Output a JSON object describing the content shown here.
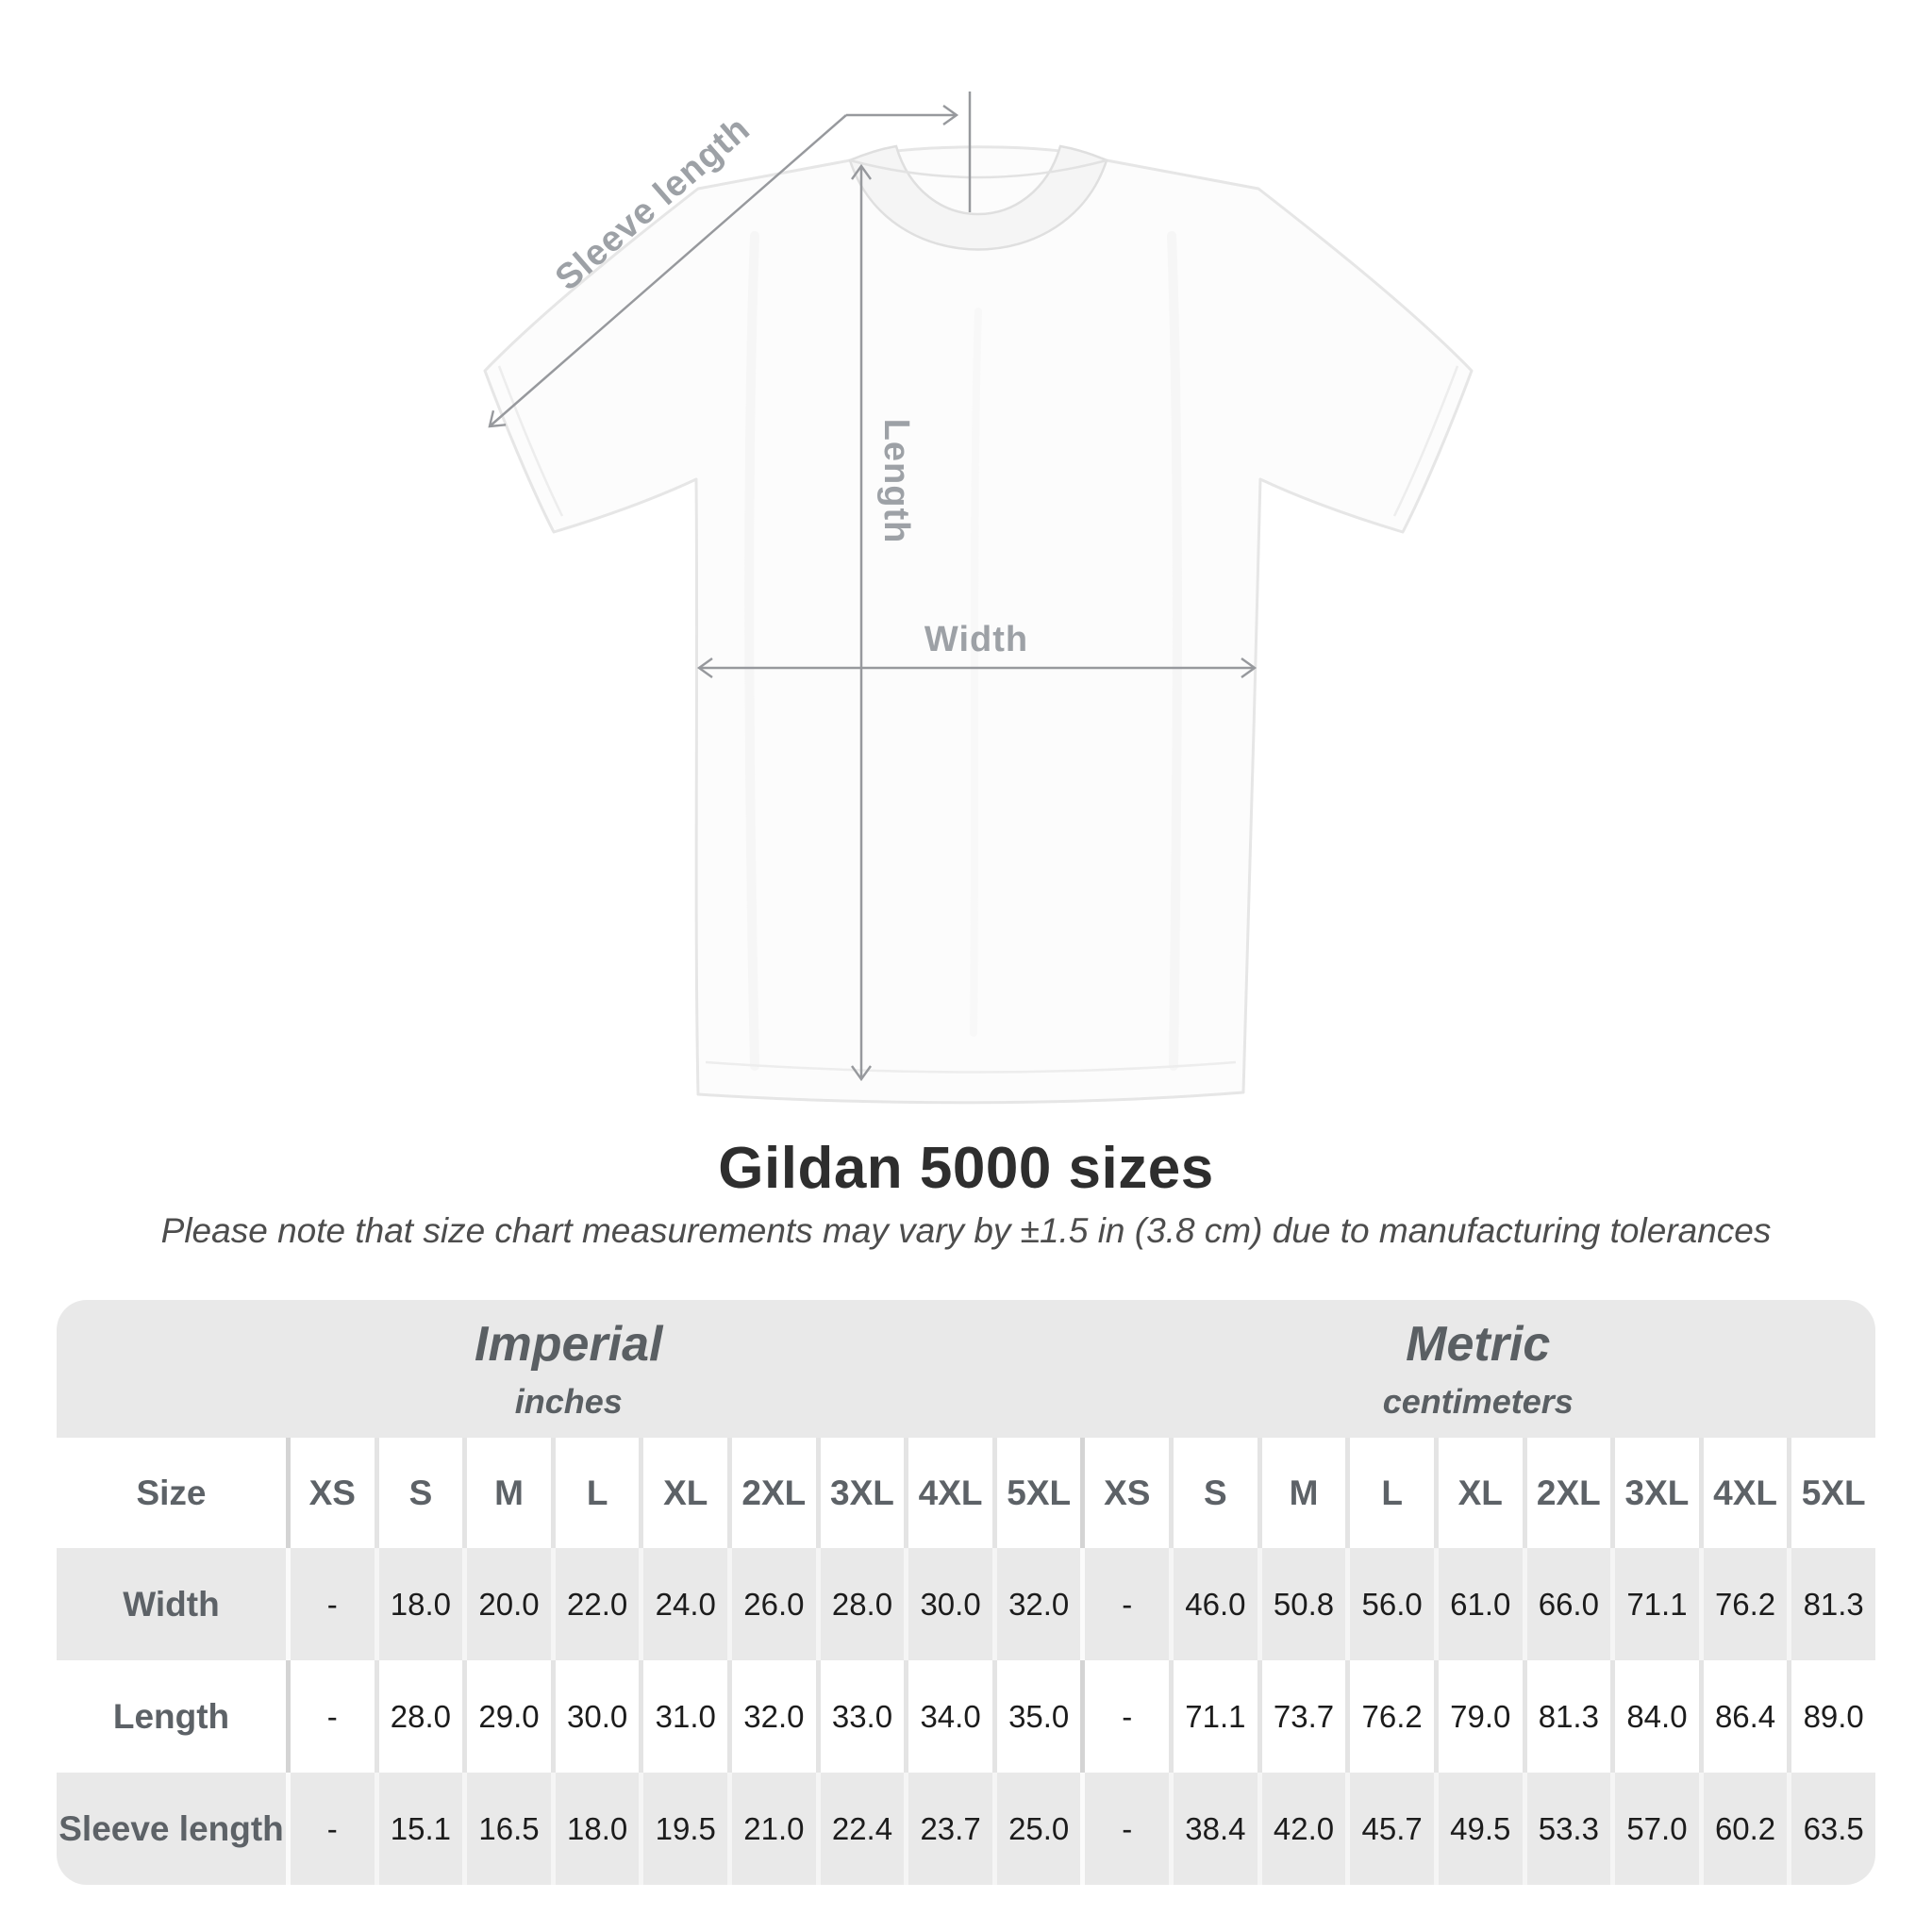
{
  "page": {
    "background": "#ffffff"
  },
  "diagram": {
    "labels": {
      "sleeve_length": "Sleeve length",
      "length": "Length",
      "width": "Width"
    },
    "line_color": "#97999d",
    "label_color": "#9da1a6",
    "shirt_color": "#fcfcfc"
  },
  "heading": {
    "title": "Gildan 5000 sizes",
    "subtitle": "Please note that size chart measurements may vary by ±1.5 in (3.8 cm) due to manufacturing tolerances"
  },
  "table": {
    "size_header": "Size",
    "sections": [
      {
        "label": "Imperial",
        "unit": "inches"
      },
      {
        "label": "Metric",
        "unit": "centimeters"
      }
    ],
    "sizes": [
      "XS",
      "S",
      "M",
      "L",
      "XL",
      "2XL",
      "3XL",
      "4XL",
      "5XL"
    ],
    "rows": [
      {
        "label": "Width",
        "imperial": [
          "-",
          "18.0",
          "20.0",
          "22.0",
          "24.0",
          "26.0",
          "28.0",
          "30.0",
          "32.0"
        ],
        "metric": [
          "-",
          "46.0",
          "50.8",
          "56.0",
          "61.0",
          "66.0",
          "71.1",
          "76.2",
          "81.3"
        ]
      },
      {
        "label": "Length",
        "imperial": [
          "-",
          "28.0",
          "29.0",
          "30.0",
          "31.0",
          "32.0",
          "33.0",
          "34.0",
          "35.0"
        ],
        "metric": [
          "-",
          "71.1",
          "73.7",
          "76.2",
          "79.0",
          "81.3",
          "84.0",
          "86.4",
          "89.0"
        ]
      },
      {
        "label": "Sleeve length",
        "imperial": [
          "-",
          "15.1",
          "16.5",
          "18.0",
          "19.5",
          "21.0",
          "22.4",
          "23.7",
          "25.0"
        ],
        "metric": [
          "-",
          "38.4",
          "42.0",
          "45.7",
          "49.5",
          "53.3",
          "57.0",
          "60.2",
          "63.5"
        ]
      }
    ],
    "stripe_color": "#e9e9e9",
    "header_text_color": "#5d6267",
    "value_text_color": "#1c1c1c"
  }
}
